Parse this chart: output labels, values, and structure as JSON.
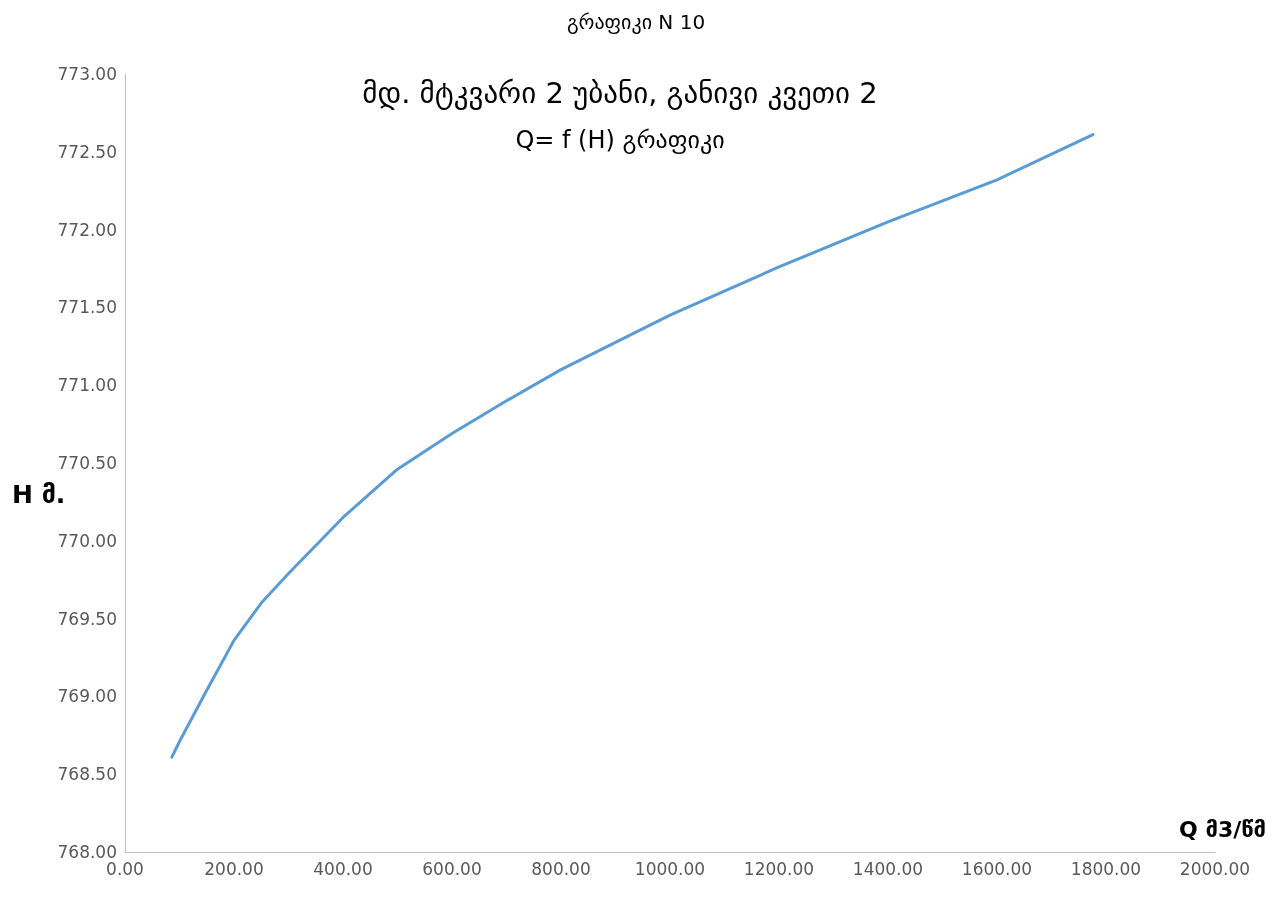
{
  "chart_data": {
    "type": "line",
    "title": "გრაფიკი N 10",
    "annotations": [
      "მდ. მტკვარი 2 უბანი, განივი კვეთი 2",
      "Q= f (H) გრაფიკი"
    ],
    "xlabel": "Q მ3/წმ",
    "ylabel": "H მ.",
    "x": [
      86,
      100,
      150,
      200,
      250,
      300,
      400,
      500,
      600,
      700,
      800,
      1000,
      1200,
      1400,
      1600,
      1776
    ],
    "series": [
      {
        "color": "#5b9bd5",
        "values": [
          768.61,
          768.71,
          769.04,
          769.36,
          769.6,
          769.79,
          770.15,
          770.46,
          770.69,
          770.9,
          771.1,
          771.45,
          771.76,
          772.05,
          772.32,
          772.61
        ]
      }
    ],
    "xlim": [
      0,
      2000
    ],
    "xticks": [
      {
        "value": 0,
        "label": "0.00"
      },
      {
        "value": 200,
        "label": "200.00"
      },
      {
        "value": 400,
        "label": "400.00"
      },
      {
        "value": 600,
        "label": "600.00"
      },
      {
        "value": 800,
        "label": "800.00"
      },
      {
        "value": 1000,
        "label": "1000.00"
      },
      {
        "value": 1200,
        "label": "1200.00"
      },
      {
        "value": 1400,
        "label": "1400.00"
      },
      {
        "value": 1600,
        "label": "1600.00"
      },
      {
        "value": 1800,
        "label": "1800.00"
      },
      {
        "value": 2000,
        "label": "2000.00"
      }
    ],
    "ylim": [
      768,
      773
    ],
    "yticks": [
      {
        "value": 768,
        "label": "768.00"
      },
      {
        "value": 768.5,
        "label": "768.50"
      },
      {
        "value": 769,
        "label": "769.00"
      },
      {
        "value": 769.5,
        "label": "769.50"
      },
      {
        "value": 770,
        "label": "770.00"
      },
      {
        "value": 770.5,
        "label": "770.50"
      },
      {
        "value": 771,
        "label": "771.00"
      },
      {
        "value": 771.5,
        "label": "771.50"
      },
      {
        "value": 772,
        "label": "772.00"
      },
      {
        "value": 772.5,
        "label": "772.50"
      },
      {
        "value": 773,
        "label": "773.00"
      }
    ],
    "grid": false,
    "marker": "none",
    "line_style": "solid"
  }
}
